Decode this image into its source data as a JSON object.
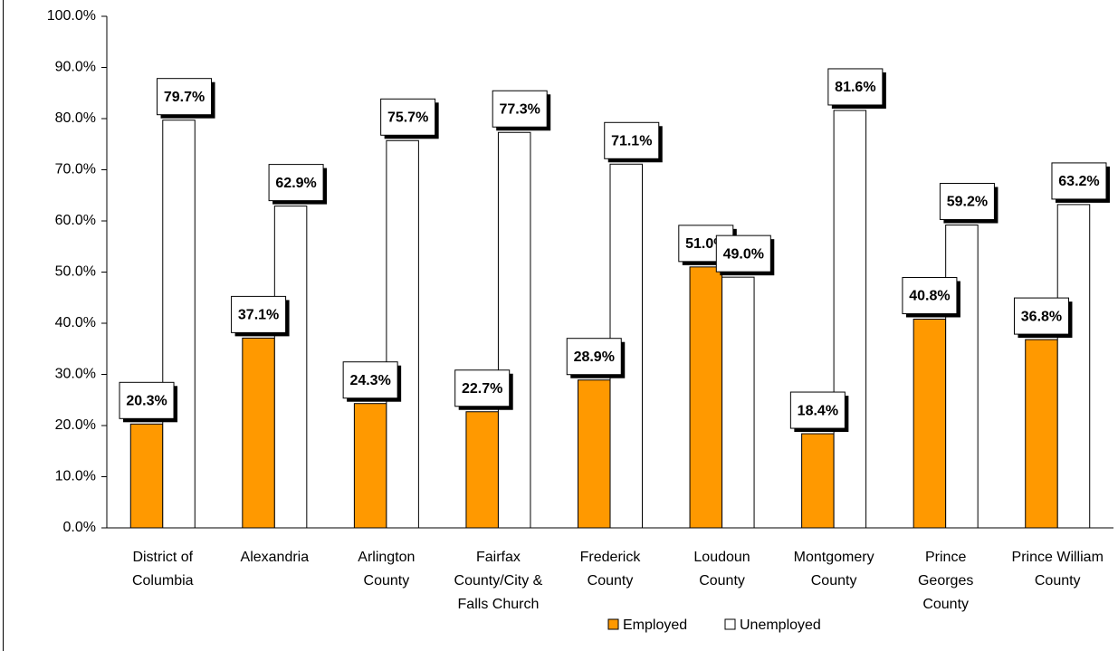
{
  "chart_data": {
    "type": "bar",
    "categories": [
      "District of\nColumbia",
      "Alexandria",
      "Arlington\nCounty",
      "Fairfax\nCounty/City &\nFalls Church",
      "Frederick\nCounty",
      "Loudoun\nCounty",
      "Montgomery\nCounty",
      "Prince\nGeorges\nCounty",
      "Prince William\nCounty"
    ],
    "series": [
      {
        "name": "Employed",
        "color": "#ff9900",
        "values": [
          20.3,
          37.1,
          24.3,
          22.7,
          28.9,
          51.0,
          18.4,
          40.8,
          36.8
        ],
        "value_labels": [
          "20.3%",
          "37.1%",
          "24.3%",
          "22.7%",
          "28.9%",
          "51.0%",
          "18.4%",
          "40.8%",
          "36.8%"
        ]
      },
      {
        "name": "Unemployed",
        "color": "#ffffff",
        "values": [
          79.7,
          62.9,
          75.7,
          77.3,
          71.1,
          49.0,
          81.6,
          59.2,
          63.2
        ],
        "value_labels": [
          "79.7%",
          "62.9%",
          "75.7%",
          "77.3%",
          "71.1%",
          "49.0%",
          "81.6%",
          "59.2%",
          "63.2%"
        ]
      }
    ],
    "ylim": [
      0,
      100
    ],
    "yticks": [
      {
        "value": 0,
        "label": "0.0%"
      },
      {
        "value": 10,
        "label": "10.0%"
      },
      {
        "value": 20,
        "label": "20.0%"
      },
      {
        "value": 30,
        "label": "30.0%"
      },
      {
        "value": 40,
        "label": "40.0%"
      },
      {
        "value": 50,
        "label": "50.0%"
      },
      {
        "value": 60,
        "label": "60.0%"
      },
      {
        "value": 70,
        "label": "70.0%"
      },
      {
        "value": 80,
        "label": "80.0%"
      },
      {
        "value": 90,
        "label": "90.0%"
      },
      {
        "value": 100,
        "label": "100.0%"
      }
    ],
    "grid": false,
    "legend": "bottom"
  }
}
